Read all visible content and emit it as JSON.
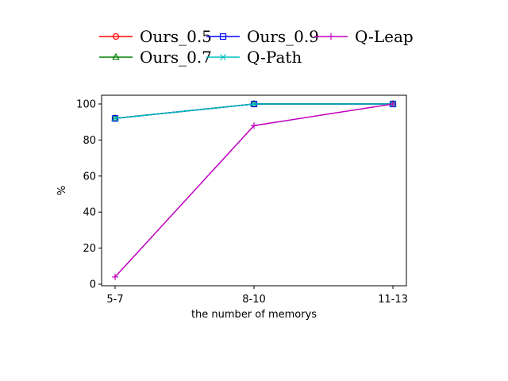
{
  "chart_data": {
    "type": "line",
    "categories": [
      "5-7",
      "8-10",
      "11-13"
    ],
    "xlabel": "the number of memorys",
    "ylabel": "%",
    "ylim": [
      0,
      100
    ],
    "yticks": [
      0,
      20,
      40,
      60,
      80,
      100
    ],
    "grid": false,
    "legend_position": "top",
    "series": [
      {
        "name": "Ours_0.5",
        "values": [
          92,
          100,
          100
        ],
        "color": "#ff0000",
        "marker": "circle"
      },
      {
        "name": "Ours_0.7",
        "values": [
          92,
          100,
          100
        ],
        "color": "#008000",
        "marker": "triangle"
      },
      {
        "name": "Ours_0.9",
        "values": [
          92,
          100,
          100
        ],
        "color": "#0000ff",
        "marker": "square"
      },
      {
        "name": "Q-Path",
        "values": [
          92,
          100,
          100
        ],
        "color": "#00bfbf",
        "marker": "x"
      },
      {
        "name": "Q-Leap",
        "values": [
          4,
          88,
          100
        ],
        "color": "#bf00bf",
        "marker": "plus"
      }
    ]
  }
}
